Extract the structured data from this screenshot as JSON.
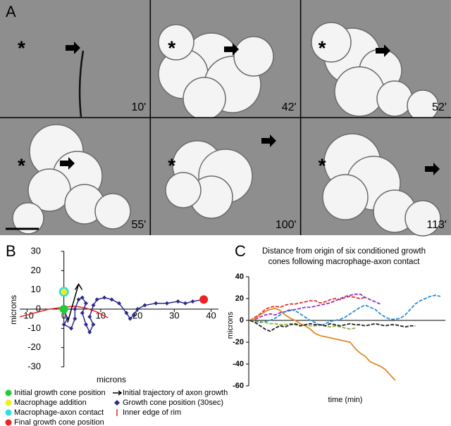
{
  "panel_a": {
    "label": "A",
    "frames": [
      {
        "marker": "*",
        "time": "10'"
      },
      {
        "marker": "*",
        "time": "42'"
      },
      {
        "marker": "*",
        "time": "52'"
      },
      {
        "marker": "*",
        "time": "55'"
      },
      {
        "marker": "*",
        "time": "100'"
      },
      {
        "marker": "*",
        "time": "113'"
      }
    ]
  },
  "chart_data": [
    {
      "type": "scatter",
      "label": "B",
      "xlabel": "microns",
      "ylabel": "microns",
      "xlim": [
        -12,
        42
      ],
      "ylim": [
        -30,
        30
      ],
      "xticks": [
        -10,
        0,
        10,
        20,
        30,
        40
      ],
      "yticks": [
        -30,
        -20,
        -10,
        0,
        10,
        20,
        30
      ],
      "series": [
        {
          "name": "Initial growth cone position",
          "marker": "circle",
          "color": "#22cc33",
          "x": [
            0
          ],
          "values": [
            0
          ]
        },
        {
          "name": "Macrophage-axon contact",
          "marker": "circle",
          "color": "#33dddd",
          "x": [
            0
          ],
          "values": [
            9
          ]
        },
        {
          "name": "Macrophage addition",
          "marker": "circle",
          "color": "#eeee22",
          "x": [
            0
          ],
          "values": [
            9
          ]
        },
        {
          "name": "Final growth cone position",
          "marker": "circle",
          "color": "#ee2222",
          "x": [
            38
          ],
          "values": [
            5
          ]
        },
        {
          "name": "Initial trajectory of axon growth",
          "marker": "arrow",
          "color": "#000000",
          "x": [
            1,
            4
          ],
          "values": [
            -7,
            13
          ]
        },
        {
          "name": "Growth cone position (30sec)",
          "marker": "diamond",
          "color": "#2a2a8c",
          "x": [
            0,
            1,
            0,
            2,
            3,
            3,
            4,
            5,
            6,
            5,
            6,
            7,
            8,
            7,
            8,
            9,
            11,
            13,
            15,
            17,
            18,
            19,
            20,
            22,
            25,
            28,
            31,
            33,
            35,
            38
          ],
          "values": [
            0,
            -5,
            -8,
            -10,
            -5,
            0,
            5,
            6,
            3,
            -2,
            -8,
            -12,
            -8,
            -4,
            2,
            5,
            6,
            5,
            3,
            -2,
            -5,
            -3,
            0,
            2,
            3,
            3,
            4,
            3,
            4,
            5
          ]
        },
        {
          "name": "Inner edge of rim",
          "marker": "line",
          "color": "#ee2222",
          "x": [
            -12,
            -8,
            -4,
            0,
            3,
            6,
            9,
            12
          ],
          "values": [
            -4,
            -2,
            0,
            1,
            1.5,
            0.5,
            -1.5,
            -4.5
          ]
        }
      ],
      "legend_order": [
        0,
        2,
        1,
        3,
        4,
        5,
        6
      ]
    },
    {
      "type": "line",
      "label": "C",
      "title": [
        "Distance from origin of six conditioned growth",
        "cones following macrophage-axon contact"
      ],
      "xlabel": "time (min)",
      "ylabel": "microns",
      "ylim": [
        -60,
        40
      ],
      "yticks": [
        -60,
        -40,
        -20,
        0,
        20,
        40
      ],
      "series": [
        {
          "color": "#e03030",
          "dash": true,
          "values": [
            0,
            3,
            6,
            10,
            12,
            13,
            12,
            14,
            15,
            15,
            16,
            17,
            18,
            18,
            16,
            17,
            19,
            20,
            19,
            21,
            22,
            21,
            20,
            21
          ]
        },
        {
          "color": "#9b30c0",
          "dash": true,
          "values": [
            0,
            1,
            3,
            5,
            6,
            5,
            7,
            8,
            9,
            10,
            11,
            12,
            12,
            13,
            14,
            15,
            16,
            18,
            20,
            22,
            23,
            24,
            24,
            21,
            19,
            17,
            15
          ]
        },
        {
          "color": "#2b8fd0",
          "dash": true,
          "values": [
            0,
            -1,
            -2,
            -1,
            0,
            2,
            5,
            8,
            10,
            9,
            6,
            3,
            0,
            -2,
            -5,
            -3,
            -1,
            0,
            1,
            3,
            6,
            9,
            12,
            14,
            12,
            10,
            6,
            3,
            1,
            1,
            2,
            5,
            10,
            15,
            18,
            20,
            22,
            23,
            22
          ]
        },
        {
          "color": "#e08a2a",
          "dash": false,
          "values": [
            0,
            2,
            5,
            8,
            10,
            11,
            9,
            5,
            2,
            0,
            -3,
            -5,
            -8,
            -12,
            -14,
            -15,
            -16,
            -17,
            -18,
            -19,
            -20,
            -26,
            -30,
            -33,
            -38,
            -40,
            -42,
            -45,
            -50,
            -55
          ]
        },
        {
          "color": "#8ab040",
          "dash": true,
          "values": [
            0,
            -1,
            -1,
            -2,
            -3,
            -3,
            -4,
            -4,
            -3,
            -4,
            -5,
            -4,
            -5,
            -5,
            -4,
            -5,
            -6,
            -5,
            -6,
            -7,
            -8,
            -7
          ]
        },
        {
          "color": "#222222",
          "dash": true,
          "values": [
            0,
            -2,
            -5,
            -8,
            -10,
            -7,
            -5,
            -6,
            -4,
            -3,
            -5,
            -4,
            -3,
            -4,
            -4,
            -5,
            -3,
            -4,
            -5,
            -4,
            -3,
            -4,
            -4,
            -5,
            -4,
            -3,
            -4,
            -5,
            -4,
            -4,
            -5,
            -6,
            -5,
            -5
          ]
        }
      ]
    }
  ]
}
